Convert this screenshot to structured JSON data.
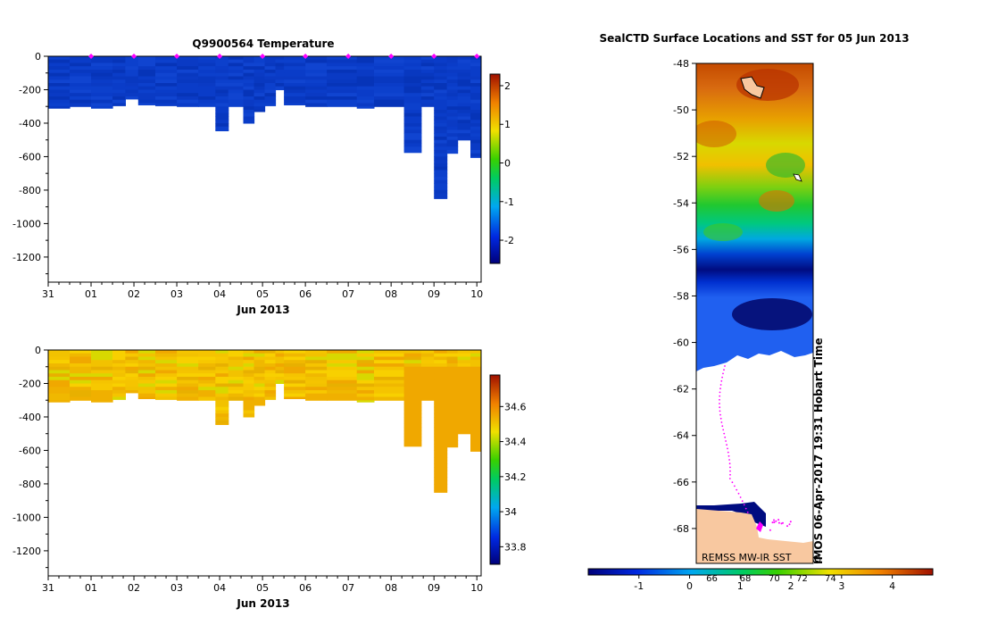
{
  "chart_data": [
    {
      "type": "heatmap",
      "panel": "temperature",
      "title": "Q9900564  Temperature",
      "xlabel": "Jun 2013",
      "x_ticks": [
        "31",
        "01",
        "02",
        "03",
        "04",
        "05",
        "06",
        "07",
        "08",
        "09",
        "10"
      ],
      "y_ticks": [
        "0",
        "-200",
        "-400",
        "-600",
        "-800",
        "-1000",
        "-1200"
      ],
      "ylim": [
        -1350,
        0
      ],
      "xlim_days": [
        0,
        10.1
      ],
      "colorbar": {
        "min": -2.6,
        "max": 2.3,
        "ticks": [
          "2",
          "1",
          "0",
          "-1",
          "-2"
        ],
        "tick_values": [
          2,
          1,
          0,
          -1,
          -2
        ]
      },
      "marker_days": [
        1,
        2,
        3,
        4,
        5,
        6,
        7,
        8,
        9,
        10
      ],
      "profile_depths": [
        {
          "day": 0.0,
          "depth": 310
        },
        {
          "day": 0.5,
          "depth": 300
        },
        {
          "day": 1.0,
          "depth": 310
        },
        {
          "day": 1.5,
          "depth": 295
        },
        {
          "day": 1.8,
          "depth": 255
        },
        {
          "day": 2.1,
          "depth": 290
        },
        {
          "day": 2.5,
          "depth": 295
        },
        {
          "day": 3.0,
          "depth": 300
        },
        {
          "day": 3.5,
          "depth": 300
        },
        {
          "day": 3.9,
          "depth": 445
        },
        {
          "day": 4.2,
          "depth": 300
        },
        {
          "day": 4.55,
          "depth": 400
        },
        {
          "day": 4.8,
          "depth": 330
        },
        {
          "day": 5.05,
          "depth": 295
        },
        {
          "day": 5.3,
          "depth": 200
        },
        {
          "day": 5.5,
          "depth": 290
        },
        {
          "day": 6.0,
          "depth": 300
        },
        {
          "day": 6.5,
          "depth": 300
        },
        {
          "day": 7.2,
          "depth": 310
        },
        {
          "day": 7.6,
          "depth": 300
        },
        {
          "day": 8.3,
          "depth": 575
        },
        {
          "day": 8.7,
          "depth": 300
        },
        {
          "day": 9.0,
          "depth": 850
        },
        {
          "day": 9.3,
          "depth": 580
        },
        {
          "day": 9.55,
          "depth": 500
        },
        {
          "day": 9.85,
          "depth": 605
        }
      ]
    },
    {
      "type": "heatmap",
      "panel": "salinity",
      "title": "",
      "xlabel": "Jun 2013",
      "x_ticks": [
        "31",
        "01",
        "02",
        "03",
        "04",
        "05",
        "06",
        "07",
        "08",
        "09",
        "10"
      ],
      "y_ticks": [
        "0",
        "-200",
        "-400",
        "-600",
        "-800",
        "-1000",
        "-1200"
      ],
      "ylim": [
        -1350,
        0
      ],
      "colorbar": {
        "min": 33.7,
        "max": 34.78,
        "ticks": [
          "34.6",
          "34.4",
          "34.2",
          "34",
          "33.8"
        ],
        "tick_values": [
          34.6,
          34.4,
          34.2,
          34.0,
          33.8
        ]
      }
    },
    {
      "type": "heatmap",
      "panel": "sst_map",
      "title": "SealCTD Surface Locations and SST for 05 Jun 2013",
      "y_ticks": [
        "-48",
        "-50",
        "-52",
        "-54",
        "-56",
        "-58",
        "-60",
        "-62",
        "-64",
        "-66",
        "-68"
      ],
      "ylim": [
        -69.5,
        -48
      ],
      "colorbar": {
        "min": -2,
        "max": 4.8,
        "ticks": [
          "-1",
          "0",
          "1",
          "2",
          "3",
          "4"
        ],
        "tick_values": [
          -1,
          0,
          1,
          2,
          3,
          4
        ],
        "f_ticks": [
          "66",
          "68",
          "70",
          "72",
          "74"
        ],
        "f_tick_values": [
          0.44,
          1.1,
          1.67,
          2.22,
          2.78
        ]
      },
      "credit": "REMSS MW-IR SST",
      "stamp": "IMOS 06-Apr-2017 19:31 Hobart Time",
      "copyright_symbol": "©"
    }
  ]
}
